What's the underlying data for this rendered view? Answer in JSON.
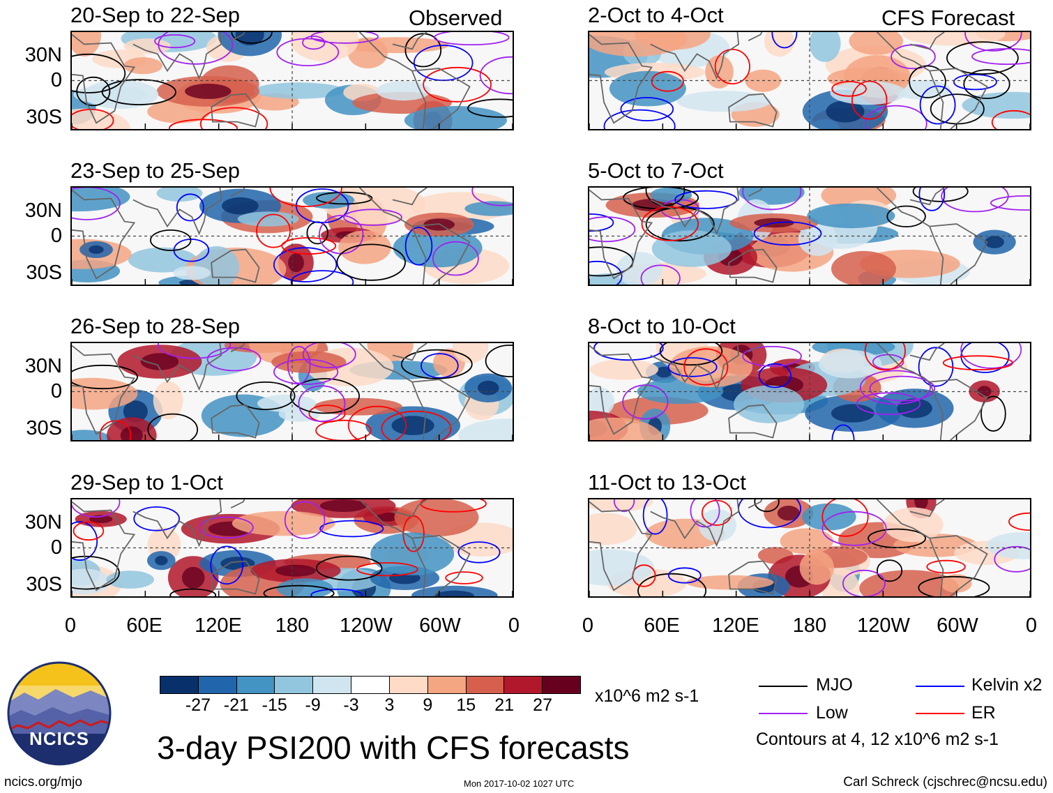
{
  "chart_data": {
    "type": "heatmap",
    "title": "3-day PSI200 with CFS forecasts",
    "left_column_label": "Observed",
    "right_column_label": "CFS Forecast",
    "y_tick_labels": [
      "30N",
      "0",
      "30S"
    ],
    "x_tick_labels": [
      "0",
      "60E",
      "120E",
      "180",
      "120W",
      "60W",
      "0"
    ],
    "x_range_deg": [
      0,
      360
    ],
    "y_range_deg": [
      -40,
      40
    ],
    "panels_observed": [
      {
        "period": "20-Sep to 22-Sep"
      },
      {
        "period": "23-Sep to 25-Sep"
      },
      {
        "period": "26-Sep to 28-Sep"
      },
      {
        "period": "29-Sep to 1-Oct"
      }
    ],
    "panels_forecast": [
      {
        "period": "2-Oct to 4-Oct"
      },
      {
        "period": "5-Oct to 7-Oct"
      },
      {
        "period": "8-Oct to 10-Oct"
      },
      {
        "period": "11-Oct to 13-Oct"
      }
    ],
    "colorbar": {
      "ticks": [
        "-27",
        "-21",
        "-15",
        "-9",
        "-3",
        "3",
        "9",
        "15",
        "21",
        "27"
      ],
      "colors": [
        "#08306b",
        "#2166ac",
        "#4393c3",
        "#92c5de",
        "#d1e5f0",
        "#ffffff",
        "#fddbc7",
        "#f4a582",
        "#d6604d",
        "#b2182b",
        "#67001f"
      ],
      "units": "x10^6 m2 s-1"
    },
    "legend": [
      {
        "label": "MJO",
        "color": "#000000"
      },
      {
        "label": "Kelvin x2",
        "color": "#0000ff"
      },
      {
        "label": "Low",
        "color": "#a020f0"
      },
      {
        "label": "ER",
        "color": "#ff0000"
      }
    ],
    "contour_note": "Contours at 4, 12 x10^6 m2 s-1"
  },
  "footer": {
    "logo_text": "NCICS",
    "url": "ncics.org/mjo",
    "timestamp": "Mon 2017-10-02 1027 UTC",
    "author": "Carl Schreck (cjschrec@ncsu.edu)"
  }
}
